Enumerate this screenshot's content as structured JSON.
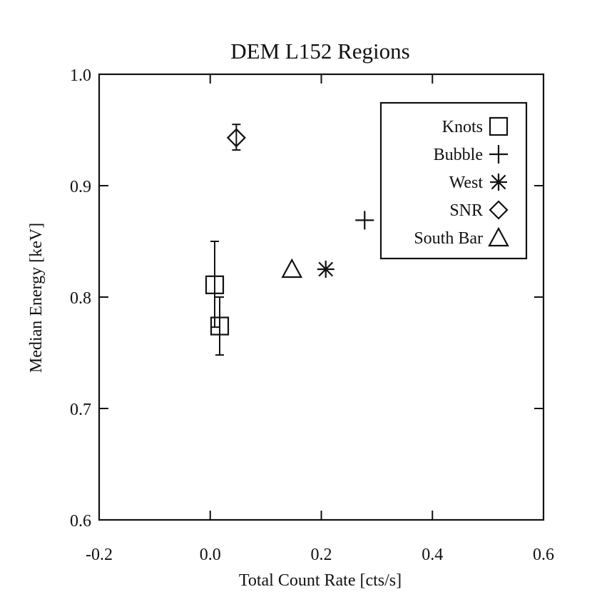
{
  "chart_data": {
    "type": "scatter",
    "title": "DEM L152 Regions",
    "xlabel": "Total Count Rate [cts/s]",
    "ylabel": "Median Energy [keV]",
    "xlim": [
      -0.2,
      0.6
    ],
    "ylim": [
      0.6,
      1.0
    ],
    "xticks": [
      "-0.2",
      "0.0",
      "0.2",
      "0.4",
      "0.6"
    ],
    "xtick_values": [
      -0.2,
      0.0,
      0.2,
      0.4,
      0.6
    ],
    "yticks": [
      "0.6",
      "0.7",
      "0.8",
      "0.9",
      "1.0"
    ],
    "ytick_values": [
      0.6,
      0.7,
      0.8,
      0.9,
      1.0
    ],
    "grid": false,
    "legend_position": "top-right",
    "series": [
      {
        "name": "Knots",
        "symbol": "square",
        "points": [
          {
            "x": 0.008,
            "y": 0.811,
            "yerr_low": 0.773,
            "yerr_high": 0.85
          },
          {
            "x": 0.017,
            "y": 0.774,
            "yerr_low": 0.748,
            "yerr_high": 0.8
          }
        ]
      },
      {
        "name": "Bubble",
        "symbol": "plus",
        "points": [
          {
            "x": 0.278,
            "y": 0.869
          }
        ]
      },
      {
        "name": "West",
        "symbol": "asterisk",
        "points": [
          {
            "x": 0.208,
            "y": 0.825
          }
        ]
      },
      {
        "name": "SNR",
        "symbol": "diamond",
        "points": [
          {
            "x": 0.047,
            "y": 0.943,
            "yerr_low": 0.932,
            "yerr_high": 0.955
          }
        ]
      },
      {
        "name": "South Bar",
        "symbol": "triangle",
        "points": [
          {
            "x": 0.147,
            "y": 0.825
          }
        ]
      }
    ]
  }
}
